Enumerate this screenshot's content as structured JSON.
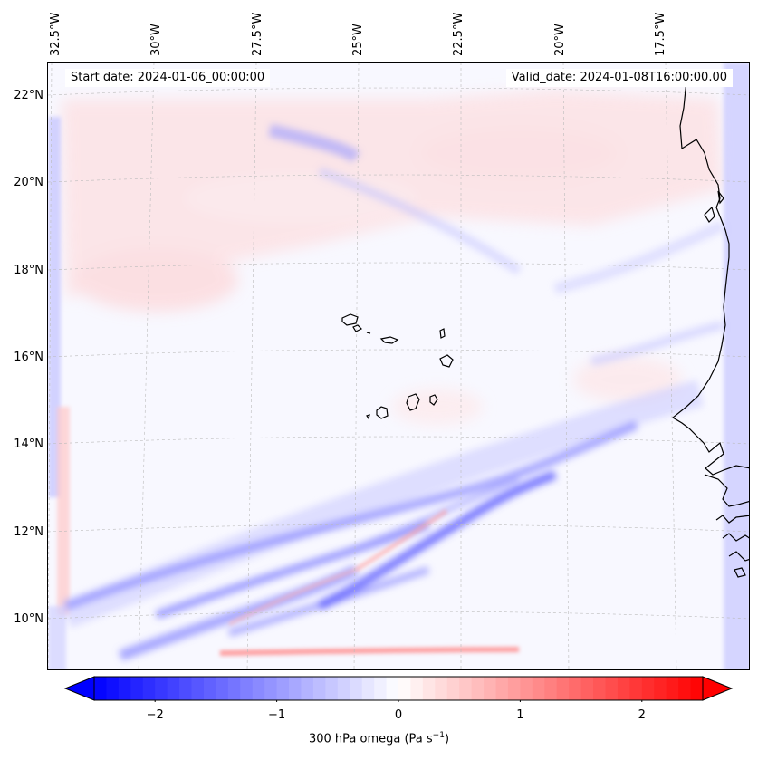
{
  "map": {
    "start_date": "Start date: 2024-01-06_00:00:00",
    "valid_date": "Valid_date: 2024-01-08T16:00:00.00",
    "lon_labels": [
      "32.5°W",
      "30°W",
      "27.5°W",
      "25°W",
      "22.5°W",
      "20°W",
      "17.5°W"
    ],
    "lat_labels": [
      "22°N",
      "20°N",
      "18°N",
      "16°N",
      "14°N",
      "12°N",
      "10°N"
    ],
    "colors": {
      "ocean_background": "#f8f8ff",
      "coast": "#000000",
      "grid": "#bbbbbb"
    }
  },
  "colorbar": {
    "label": "300 hPa omega (Pa s",
    "label_exp": "−1",
    "label_close": ")",
    "ticks": [
      {
        "value": -2,
        "label": "−2"
      },
      {
        "value": -1,
        "label": "−1"
      },
      {
        "value": 0,
        "label": "0"
      },
      {
        "value": 1,
        "label": "1"
      },
      {
        "value": 2,
        "label": "2"
      }
    ],
    "range": [
      -2.5,
      2.5
    ],
    "low_color": "#0000ff",
    "mid_color": "#ffffff",
    "high_color": "#ff0000"
  }
}
